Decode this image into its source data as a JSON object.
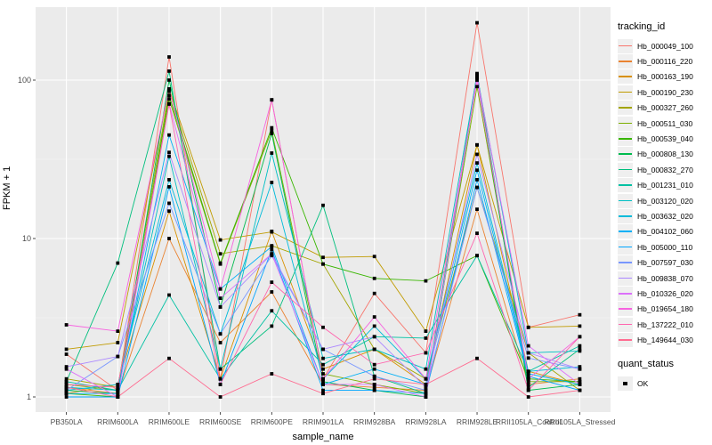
{
  "figure": {
    "background": "#FFFFFF",
    "panel_background": "#EBEBEB",
    "grid_major_color": "#FFFFFF",
    "grid_minor_color": "#F7F7F7",
    "axis_text_color": "#4D4D4D",
    "tick_mark_color": "#333333",
    "point_color": "#000000"
  },
  "axes": {
    "x_title": "sample_name",
    "y_title": "FPKM + 1",
    "y_tick_labels": [
      "1",
      "10",
      "100"
    ]
  },
  "legend": {
    "tracking_title": "tracking_id",
    "quant_title": "quant_status",
    "quant_items": [
      {
        "label": "OK",
        "marker": "black-square"
      }
    ]
  },
  "chart_data": {
    "type": "line",
    "title": "",
    "xlabel": "sample_name",
    "ylabel": "FPKM + 1",
    "y_scale": "log10",
    "ylim": [
      0.78,
      289
    ],
    "y_tick_values": [
      1,
      10,
      100
    ],
    "y_minor_values": [
      3.162,
      31.62
    ],
    "grid": true,
    "legend_position": "right",
    "point_shape": "filled-black-square",
    "quant_status": "OK",
    "categories": [
      "PB350LA",
      "RRIM600LA",
      "RRIM600LE",
      "RRIM600SE",
      "RRIM600PE",
      "RRIM901LA",
      "RRIM928BA",
      "RRIM928LA",
      "RRIM928LE",
      "RRII105LA_Control",
      "RRII105LA_Stressed"
    ],
    "series": [
      {
        "name": "Hb_000049_100",
        "color": "#F8766D",
        "values": [
          1.86,
          1.1,
          140,
          1.3,
          75,
          1.3,
          4.5,
          1.9,
          230,
          2.75,
          3.3
        ]
      },
      {
        "name": "Hb_000116_220",
        "color": "#EA8331",
        "values": [
          1.15,
          1.05,
          10.0,
          2.2,
          4.6,
          1.2,
          1.15,
          1.1,
          15.3,
          1.2,
          1.3
        ]
      },
      {
        "name": "Hb_000163_190",
        "color": "#D89000",
        "values": [
          1.05,
          1.2,
          14.9,
          1.3,
          11.1,
          1.5,
          2.0,
          1.2,
          39.0,
          1.45,
          1.2
        ]
      },
      {
        "name": "Hb_000190_230",
        "color": "#C09B00",
        "values": [
          2.0,
          2.2,
          88.0,
          9.8,
          11.0,
          7.6,
          7.7,
          2.6,
          39.0,
          2.75,
          2.8
        ]
      },
      {
        "name": "Hb_000327_260",
        "color": "#A3A500",
        "values": [
          1.3,
          1.15,
          85.0,
          8.0,
          9.0,
          6.9,
          2.0,
          1.3,
          21.0,
          1.9,
          1.1
        ]
      },
      {
        "name": "Hb_000511_030",
        "color": "#7CAE00",
        "values": [
          1.2,
          1.1,
          76.0,
          6.9,
          48.0,
          1.4,
          1.2,
          1.05,
          91.0,
          1.25,
          1.25
        ]
      },
      {
        "name": "Hb_000539_040",
        "color": "#39B600",
        "values": [
          1.05,
          1.0,
          80.0,
          7.0,
          50.0,
          6.9,
          5.6,
          5.4,
          7.8,
          1.3,
          1.25
        ]
      },
      {
        "name": "Hb_000808_130",
        "color": "#00BB4E",
        "values": [
          1.1,
          1.05,
          100,
          3.7,
          46.0,
          1.25,
          1.1,
          1.0,
          103,
          1.1,
          1.2
        ]
      },
      {
        "name": "Hb_000832_270",
        "color": "#00BF7D",
        "values": [
          1.25,
          7.0,
          114,
          1.5,
          2.8,
          16.2,
          1.35,
          1.05,
          110,
          1.15,
          2.0
        ]
      },
      {
        "name": "Hb_001231_010",
        "color": "#00C1A3",
        "values": [
          1.25,
          1.1,
          4.4,
          1.3,
          3.5,
          1.6,
          2.4,
          2.35,
          7.8,
          1.45,
          2.1
        ]
      },
      {
        "name": "Hb_003120_020",
        "color": "#00BFC4",
        "values": [
          1.15,
          1.1,
          33.0,
          1.5,
          34.6,
          1.75,
          2.0,
          1.5,
          108,
          1.9,
          1.95
        ]
      },
      {
        "name": "Hb_003632_020",
        "color": "#00BBDA",
        "values": [
          1.1,
          1.2,
          23.5,
          2.5,
          22.6,
          1.3,
          2.8,
          1.3,
          30.0,
          1.45,
          1.55
        ]
      },
      {
        "name": "Hb_004102_060",
        "color": "#00B0F6",
        "values": [
          1.05,
          1.05,
          45.0,
          4.8,
          8.9,
          1.2,
          1.5,
          1.2,
          27.0,
          1.4,
          1.2
        ]
      },
      {
        "name": "Hb_005000_110",
        "color": "#00A5FF",
        "values": [
          1.0,
          1.0,
          21.2,
          1.2,
          8.5,
          1.1,
          1.1,
          1.05,
          23.5,
          1.35,
          1.1
        ]
      },
      {
        "name": "Hb_007597_030",
        "color": "#7997FF",
        "values": [
          1.1,
          1.8,
          16.7,
          2.5,
          7.8,
          2.0,
          1.35,
          1.1,
          21.0,
          1.76,
          1.5
        ]
      },
      {
        "name": "Hb_009838_070",
        "color": "#AC88FF",
        "values": [
          1.55,
          1.8,
          35.0,
          3.7,
          8.0,
          2.0,
          2.4,
          1.15,
          34.0,
          1.9,
          1.5
        ]
      },
      {
        "name": "Hb_010326_020",
        "color": "#DC71FA",
        "values": [
          1.5,
          1.0,
          71.0,
          4.2,
          8.0,
          1.2,
          1.2,
          1.0,
          105,
          2.1,
          1.2
        ]
      },
      {
        "name": "Hb_019654_180",
        "color": "#F763E0",
        "values": [
          2.85,
          2.6,
          88.0,
          4.8,
          75.0,
          1.3,
          3.2,
          1.3,
          100,
          1.3,
          2.4
        ]
      },
      {
        "name": "Hb_137222_010",
        "color": "#FF65AE",
        "values": [
          1.2,
          1.15,
          70.5,
          1.2,
          5.3,
          2.75,
          1.6,
          1.9,
          10.8,
          1.1,
          2.4
        ]
      },
      {
        "name": "Hb_149644_030",
        "color": "#FF6C91",
        "values": [
          1.15,
          1.0,
          1.75,
          1.0,
          1.4,
          1.05,
          1.3,
          1.2,
          1.75,
          1.0,
          1.1
        ]
      }
    ]
  }
}
